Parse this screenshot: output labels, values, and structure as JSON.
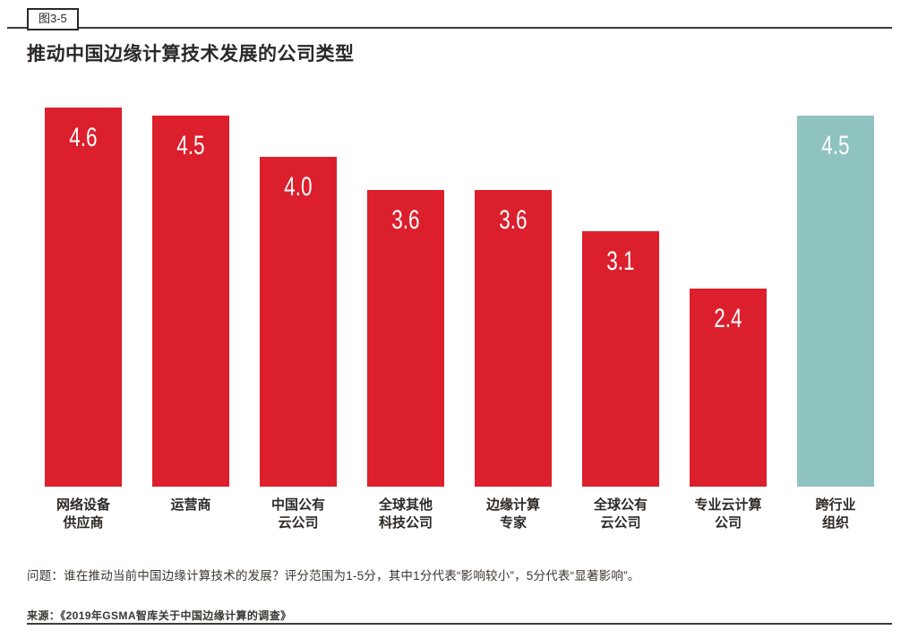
{
  "figure": {
    "badge": "图3-5",
    "title": "推动中国边缘计算技术发展的公司类型",
    "question": "问题：谁在推动当前中国边缘计算技术的发展？评分范围为1-5分，其中1分代表“影响较小”，5分代表“显著影响”。",
    "source": "来源：《2019年GSMA智库关于中国边缘计算的调查》"
  },
  "colors": {
    "bar_red": "#dc1f2c",
    "bar_teal": "#8fc3c0",
    "value_label": "#ffffff",
    "text_dark": "#2b2826",
    "rule": "#3c3c3c"
  },
  "chart_data": {
    "type": "bar",
    "title": "推动中国边缘计算技术发展的公司类型",
    "categories": [
      "网络设备 供应商",
      "运营商",
      "中国公有 云公司",
      "全球其他 科技公司",
      "边缘计算 专家",
      "全球公有 云公司",
      "专业云计算 公司",
      "跨行业 组织"
    ],
    "category_lines": [
      [
        "网络设备",
        "供应商"
      ],
      [
        "运营商"
      ],
      [
        "中国公有",
        "云公司"
      ],
      [
        "全球其他",
        "科技公司"
      ],
      [
        "边缘计算",
        "专家"
      ],
      [
        "全球公有",
        "云公司"
      ],
      [
        "专业云计算",
        "公司"
      ],
      [
        "跨行业",
        "组织"
      ]
    ],
    "values": [
      4.6,
      4.5,
      4.0,
      3.6,
      3.6,
      3.1,
      2.4,
      4.5
    ],
    "value_labels": [
      "4.6",
      "4.5",
      "4.0",
      "3.6",
      "3.6",
      "3.1",
      "2.4",
      "4.5"
    ],
    "bar_color_keys": [
      "bar_red",
      "bar_red",
      "bar_red",
      "bar_red",
      "bar_red",
      "bar_red",
      "bar_red",
      "bar_teal"
    ],
    "xlabel": "",
    "ylabel": "",
    "ylim": [
      0,
      5
    ],
    "grid": false,
    "legend": false,
    "value_labels_shown": true
  }
}
